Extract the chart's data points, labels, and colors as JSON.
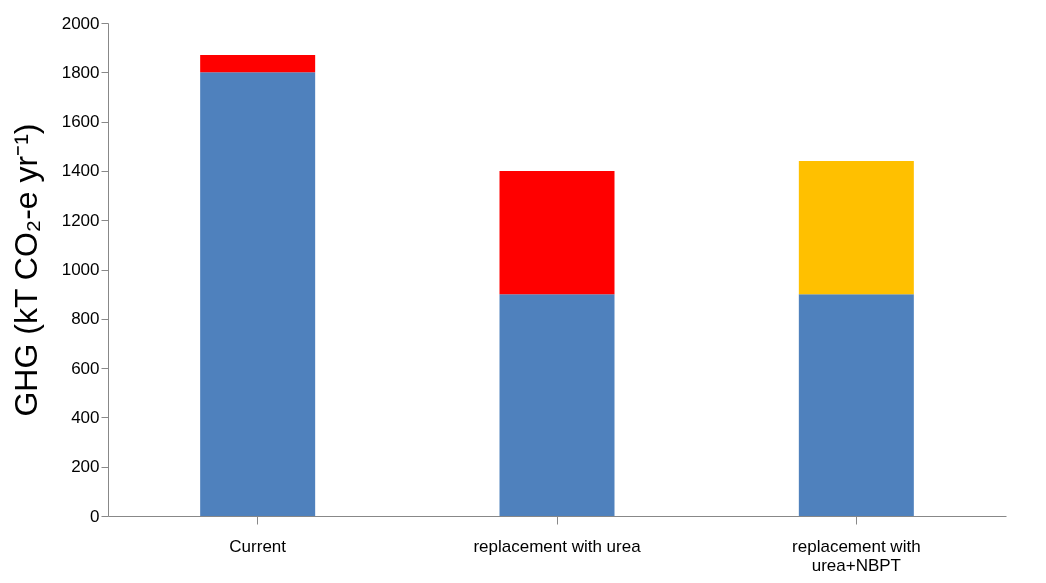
{
  "chart_data": {
    "type": "bar",
    "stacked": true,
    "ylabel": "GHG (kT CO₂-e yr⁻¹)",
    "categories": [
      "Current",
      "replacement with urea",
      "replacement with urea+NBPT"
    ],
    "series": [
      {
        "color": "#4f81bd",
        "values": [
          1800,
          900,
          900
        ]
      },
      {
        "color": "#ff0000",
        "values": [
          70,
          500,
          null
        ]
      },
      {
        "color": "#ffc000",
        "values": [
          null,
          null,
          540
        ]
      }
    ],
    "ylim": [
      0,
      2000
    ],
    "yticks": [
      0,
      200,
      400,
      600,
      800,
      1000,
      1200,
      1400,
      1600,
      1800,
      2000
    ],
    "grid": false,
    "legend": false
  }
}
